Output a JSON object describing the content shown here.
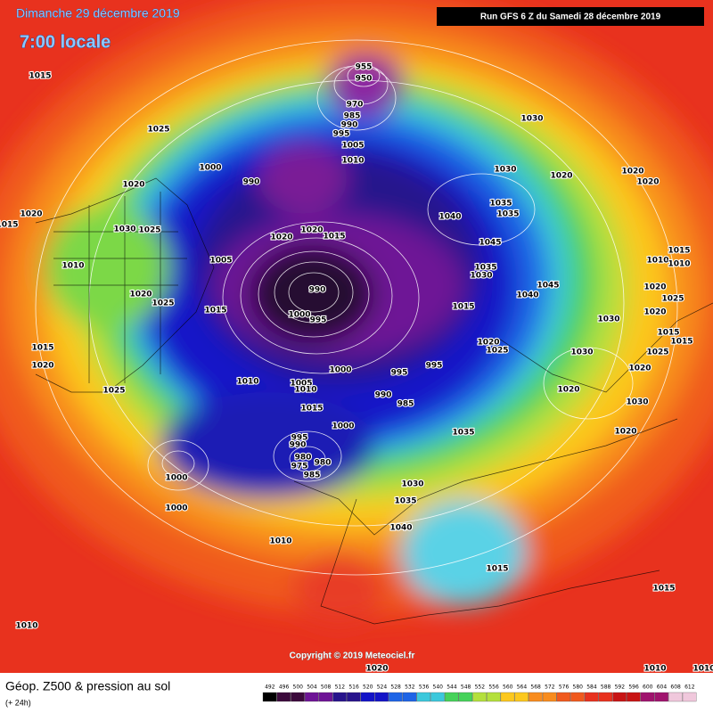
{
  "header": {
    "date": "Dimanche 29 décembre 2019",
    "time": "7:00 locale"
  },
  "run_info": "Run GFS 6 Z du Samedi 28 décembre 2019",
  "copyright": "Copyright © 2019 Meteociel.fr",
  "footer": {
    "title": "Géop. Z500 & pression au sol",
    "subtitle": "(+ 24h)"
  },
  "legend": {
    "values": [
      492,
      496,
      500,
      504,
      508,
      512,
      516,
      520,
      524,
      528,
      532,
      536,
      540,
      544,
      548,
      552,
      556,
      560,
      564,
      568,
      572,
      576,
      580,
      584,
      588,
      592,
      596,
      600,
      604,
      608,
      612
    ]
  },
  "isobar_labels": [
    1015,
    1025,
    1000,
    990,
    1020,
    1020,
    1015,
    1030,
    1025,
    1010,
    1005,
    1020,
    1025,
    1015,
    1020,
    1020,
    1015,
    955,
    950,
    970,
    985,
    990,
    995,
    1005,
    1010,
    1030,
    1030,
    1020,
    1020,
    1020,
    1040,
    1035,
    1035,
    1045,
    1035,
    1030,
    1040,
    1045,
    990,
    1000,
    995,
    1015,
    1020,
    1025,
    1015,
    1010,
    1010,
    1020,
    1025,
    1020,
    1030,
    1015,
    1015,
    1030,
    1025,
    1020,
    1015,
    1020,
    1025,
    1010,
    1000,
    1005,
    1010,
    995,
    995,
    990,
    985,
    1015,
    1000,
    995,
    990,
    980,
    975,
    980,
    985,
    1000,
    1000,
    1035,
    1030,
    1035,
    1040,
    1010,
    1015,
    1015,
    1010,
    1020,
    1010,
    1010,
    1020,
    1030,
    1020
  ]
}
